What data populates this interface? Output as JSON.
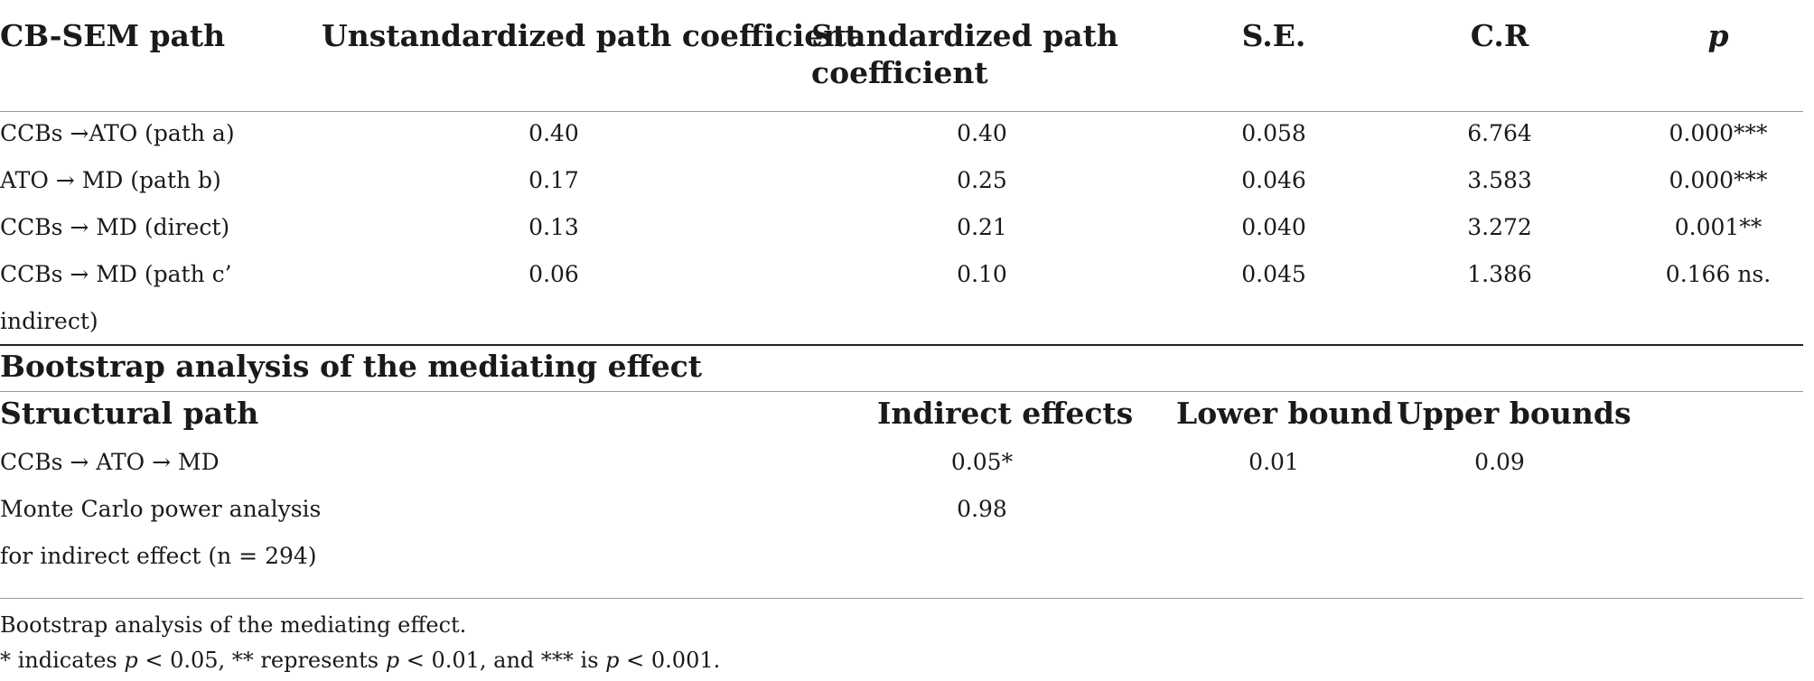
{
  "table1": {
    "headers": {
      "path": "CB-SEM path",
      "unstd": "Unstandardized path coefficient",
      "std_line1": "Standardized path",
      "std_line2": "coefficient",
      "se": "S.E.",
      "cr": "C.R",
      "p": "p"
    },
    "rows": [
      {
        "path": "CCBs →ATO (path a)",
        "unstd": "0.40",
        "std": "0.40",
        "se": "0.058",
        "cr": "6.764",
        "p": "0.000***"
      },
      {
        "path": "ATO → MD (path b)",
        "unstd": "0.17",
        "std": "0.25",
        "se": "0.046",
        "cr": "3.583",
        "p": "0.000***"
      },
      {
        "path": "CCBs → MD (direct)",
        "unstd": "0.13",
        "std": "0.21",
        "se": "0.040",
        "cr": "3.272",
        "p": "0.001**"
      },
      {
        "path": "CCBs → MD (path c’",
        "path_cont": "indirect)",
        "unstd": "0.06",
        "std": "0.10",
        "se": "0.045",
        "cr": "1.386",
        "p": "0.166 ns."
      }
    ]
  },
  "bootstrap": {
    "title": "Bootstrap analysis of the mediating effect",
    "headers": {
      "path": "Structural path",
      "indirect": "Indirect effects",
      "lower": "Lower bound",
      "upper": "Upper bounds"
    },
    "rows": [
      {
        "path": "CCBs → ATO → MD",
        "indirect": "0.05*",
        "lower": "0.01",
        "upper": "0.09"
      },
      {
        "path": "Monte Carlo power analysis",
        "path_cont": "for indirect effect (n = 294)",
        "indirect": "0.98"
      }
    ]
  },
  "footnotes": {
    "line1": "Bootstrap analysis of the mediating effect.",
    "line2_a": "* indicates ",
    "line2_p1": "p",
    "line2_b": " < 0.05, ** represents ",
    "line2_p2": "p",
    "line2_c": " < 0.01, and *** is ",
    "line2_p3": "p",
    "line2_d": " < 0.001."
  }
}
